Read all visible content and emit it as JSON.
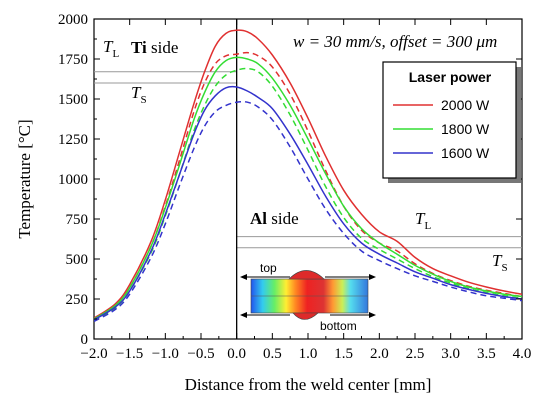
{
  "chart_data": {
    "type": "line",
    "xlabel": "Distance from the weld center  [mm]",
    "ylabel": "Temperature  [°C]",
    "xlim": [
      -2.0,
      4.0
    ],
    "ylim": [
      0,
      2000
    ],
    "xticks": [
      "−2.0",
      "−1.5",
      "−1.0",
      "−0.5",
      "0.0",
      "0.5",
      "1.0",
      "1.5",
      "2.0",
      "2.5",
      "3.0",
      "3.5",
      "4.0"
    ],
    "yticks": [
      "0",
      "250",
      "500",
      "750",
      "1000",
      "1250",
      "1500",
      "1750",
      "2000"
    ],
    "grid": false,
    "conditions_label": "w = 30 mm/s, offset = 300 μm",
    "legend": {
      "title": "Laser power",
      "placement": "top-right",
      "entries": [
        "2000 W",
        "1800 W",
        "1600 W"
      ]
    },
    "colors": {
      "2000 W": "#e03030",
      "1800 W": "#33dd33",
      "1600 W": "#3333cc"
    },
    "annotations": {
      "ti_side_bold": "Ti",
      "ti_side_rest": " side",
      "al_side_bold": "Al",
      "al_side_rest": " side",
      "T": "T",
      "L": "L",
      "S": "S",
      "inset_top": "top",
      "inset_bottom": "bottom"
    },
    "reference_lines": [
      {
        "label": "TL (Ti)",
        "y": 1670,
        "x_range": [
          -2.0,
          0.0
        ]
      },
      {
        "label": "TS (Ti)",
        "y": 1600,
        "x_range": [
          -2.0,
          0.0
        ]
      },
      {
        "label": "TL (Al)",
        "y": 640,
        "x_range": [
          0.0,
          4.0
        ]
      },
      {
        "label": "TS (Al)",
        "y": 570,
        "x_range": [
          0.0,
          4.0
        ]
      }
    ],
    "series": [
      {
        "name": "2000 W",
        "style": "solid",
        "color": "#e03030",
        "x": [
          -2.0,
          -1.7,
          -1.5,
          -1.2,
          -1.0,
          -0.8,
          -0.6,
          -0.45,
          -0.3,
          -0.15,
          0.0,
          0.15,
          0.3,
          0.5,
          0.75,
          1.0,
          1.25,
          1.5,
          1.75,
          2.0,
          2.25,
          2.5,
          2.75,
          3.0,
          3.25,
          3.5,
          3.75,
          4.0
        ],
        "y": [
          130,
          220,
          340,
          610,
          870,
          1170,
          1470,
          1670,
          1830,
          1910,
          1930,
          1920,
          1875,
          1775,
          1600,
          1380,
          1140,
          930,
          780,
          670,
          610,
          510,
          440,
          395,
          355,
          325,
          300,
          280
        ]
      },
      {
        "name": "2000 W",
        "style": "dashed",
        "color": "#e03030",
        "x": [
          -2.0,
          -1.7,
          -1.5,
          -1.2,
          -1.0,
          -0.8,
          -0.6,
          -0.45,
          -0.3,
          -0.15,
          0.0,
          0.15,
          0.3,
          0.5,
          0.75,
          1.0,
          1.25,
          1.5,
          1.75,
          2.0,
          2.25,
          2.5,
          2.75,
          3.0,
          3.25,
          3.5,
          3.75,
          4.0
        ],
        "y": [
          120,
          210,
          320,
          580,
          830,
          1120,
          1420,
          1600,
          1720,
          1770,
          1780,
          1790,
          1770,
          1700,
          1530,
          1300,
          1050,
          830,
          680,
          600,
          550,
          470,
          410,
          365,
          330,
          305,
          285,
          265
        ]
      },
      {
        "name": "1800 W",
        "style": "solid",
        "color": "#33dd33",
        "x": [
          -2.0,
          -1.7,
          -1.5,
          -1.2,
          -1.0,
          -0.8,
          -0.6,
          -0.45,
          -0.3,
          -0.15,
          0.0,
          0.15,
          0.3,
          0.5,
          0.75,
          1.0,
          1.25,
          1.5,
          1.75,
          2.0,
          2.25,
          2.5,
          2.75,
          3.0,
          3.25,
          3.5,
          3.75,
          4.0
        ],
        "y": [
          125,
          210,
          320,
          580,
          820,
          1090,
          1370,
          1540,
          1670,
          1740,
          1760,
          1750,
          1720,
          1630,
          1460,
          1250,
          1030,
          830,
          690,
          600,
          530,
          460,
          405,
          360,
          325,
          300,
          280,
          265
        ]
      },
      {
        "name": "1800 W",
        "style": "dashed",
        "color": "#33dd33",
        "x": [
          -2.0,
          -1.7,
          -1.5,
          -1.2,
          -1.0,
          -0.8,
          -0.6,
          -0.45,
          -0.3,
          -0.15,
          0.0,
          0.15,
          0.3,
          0.5,
          0.75,
          1.0,
          1.25,
          1.5,
          1.75,
          2.0,
          2.25,
          2.5,
          2.75,
          3.0,
          3.25,
          3.5,
          3.75,
          4.0
        ],
        "y": [
          115,
          195,
          300,
          540,
          770,
          1030,
          1300,
          1460,
          1580,
          1650,
          1680,
          1690,
          1670,
          1580,
          1400,
          1180,
          950,
          760,
          630,
          560,
          500,
          440,
          390,
          350,
          315,
          290,
          270,
          255
        ]
      },
      {
        "name": "1600 W",
        "style": "solid",
        "color": "#3333cc",
        "x": [
          -2.0,
          -1.7,
          -1.5,
          -1.2,
          -1.0,
          -0.8,
          -0.6,
          -0.45,
          -0.3,
          -0.15,
          0.0,
          0.15,
          0.3,
          0.5,
          0.75,
          1.0,
          1.25,
          1.5,
          1.75,
          2.0,
          2.25,
          2.5,
          2.75,
          3.0,
          3.25,
          3.5,
          3.75,
          4.0
        ],
        "y": [
          120,
          200,
          300,
          550,
          780,
          1030,
          1280,
          1430,
          1520,
          1570,
          1575,
          1550,
          1510,
          1440,
          1280,
          1090,
          890,
          720,
          600,
          530,
          475,
          420,
          380,
          340,
          310,
          285,
          265,
          250
        ]
      },
      {
        "name": "1600 W",
        "style": "dashed",
        "color": "#3333cc",
        "x": [
          -2.0,
          -1.7,
          -1.5,
          -1.2,
          -1.0,
          -0.8,
          -0.6,
          -0.45,
          -0.3,
          -0.15,
          0.0,
          0.15,
          0.3,
          0.5,
          0.75,
          1.0,
          1.25,
          1.5,
          1.75,
          2.0,
          2.25,
          2.5,
          2.75,
          3.0,
          3.25,
          3.5,
          3.75,
          4.0
        ],
        "y": [
          110,
          185,
          280,
          510,
          720,
          960,
          1190,
          1330,
          1420,
          1460,
          1480,
          1480,
          1450,
          1370,
          1200,
          1000,
          810,
          660,
          550,
          490,
          440,
          395,
          360,
          325,
          295,
          270,
          255,
          240
        ]
      }
    ]
  }
}
